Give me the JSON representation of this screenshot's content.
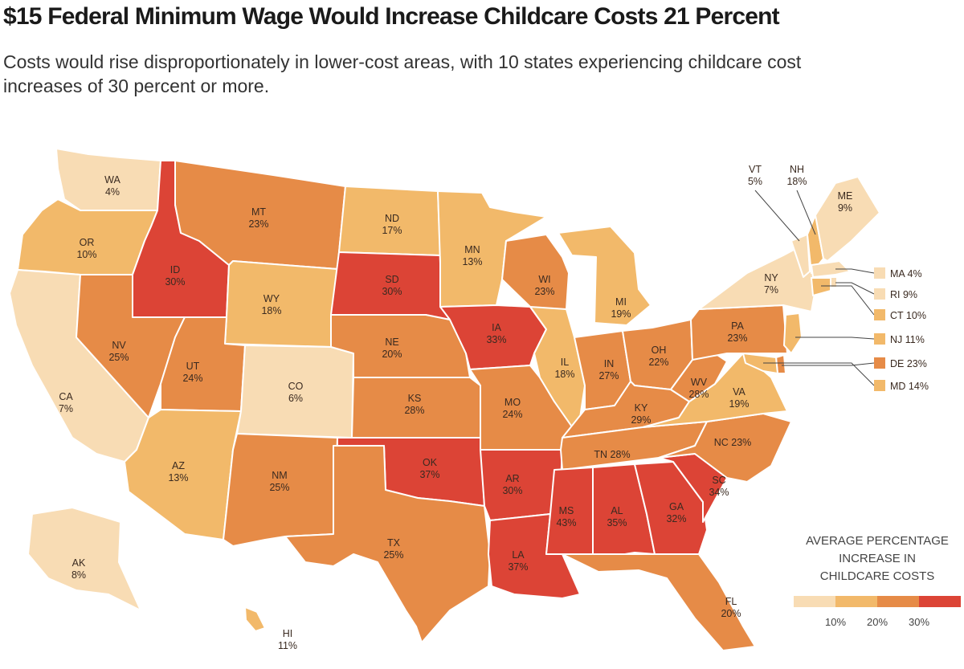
{
  "title": "$15 Federal Minimum Wage Would Increase Childcare Costs 21 Percent",
  "subtitle": "Costs would rise disproportionately in lower-cost areas, with 10 states experiencing childcare cost increases of 30 percent or more.",
  "colors": {
    "bin_lt10": "#f8dcb4",
    "bin_10_20": "#f2b96a",
    "bin_20_30": "#e68b47",
    "bin_30plus": "#dc4436"
  },
  "states": [
    {
      "abbr": "WA",
      "pct": "4%",
      "value": 4
    },
    {
      "abbr": "OR",
      "pct": "10%",
      "value": 10
    },
    {
      "abbr": "CA",
      "pct": "7%",
      "value": 7
    },
    {
      "abbr": "ID",
      "pct": "30%",
      "value": 30
    },
    {
      "abbr": "NV",
      "pct": "25%",
      "value": 25
    },
    {
      "abbr": "MT",
      "pct": "23%",
      "value": 23
    },
    {
      "abbr": "WY",
      "pct": "18%",
      "value": 18
    },
    {
      "abbr": "UT",
      "pct": "24%",
      "value": 24
    },
    {
      "abbr": "AZ",
      "pct": "13%",
      "value": 13
    },
    {
      "abbr": "CO",
      "pct": "6%",
      "value": 6
    },
    {
      "abbr": "NM",
      "pct": "25%",
      "value": 25
    },
    {
      "abbr": "ND",
      "pct": "17%",
      "value": 17
    },
    {
      "abbr": "SD",
      "pct": "30%",
      "value": 30
    },
    {
      "abbr": "NE",
      "pct": "20%",
      "value": 20
    },
    {
      "abbr": "KS",
      "pct": "28%",
      "value": 28
    },
    {
      "abbr": "OK",
      "pct": "37%",
      "value": 37
    },
    {
      "abbr": "TX",
      "pct": "25%",
      "value": 25
    },
    {
      "abbr": "MN",
      "pct": "13%",
      "value": 13
    },
    {
      "abbr": "IA",
      "pct": "33%",
      "value": 33
    },
    {
      "abbr": "MO",
      "pct": "24%",
      "value": 24
    },
    {
      "abbr": "AR",
      "pct": "30%",
      "value": 30
    },
    {
      "abbr": "LA",
      "pct": "37%",
      "value": 37
    },
    {
      "abbr": "WI",
      "pct": "23%",
      "value": 23
    },
    {
      "abbr": "IL",
      "pct": "18%",
      "value": 18
    },
    {
      "abbr": "MI",
      "pct": "19%",
      "value": 19
    },
    {
      "abbr": "IN",
      "pct": "27%",
      "value": 27
    },
    {
      "abbr": "OH",
      "pct": "22%",
      "value": 22
    },
    {
      "abbr": "KY",
      "pct": "29%",
      "value": 29
    },
    {
      "abbr": "TN",
      "pct": "28%",
      "value": 28
    },
    {
      "abbr": "MS",
      "pct": "43%",
      "value": 43
    },
    {
      "abbr": "AL",
      "pct": "35%",
      "value": 35
    },
    {
      "abbr": "GA",
      "pct": "32%",
      "value": 32
    },
    {
      "abbr": "FL",
      "pct": "20%",
      "value": 20
    },
    {
      "abbr": "SC",
      "pct": "34%",
      "value": 34
    },
    {
      "abbr": "NC",
      "pct": "23%",
      "value": 23
    },
    {
      "abbr": "VA",
      "pct": "19%",
      "value": 19
    },
    {
      "abbr": "WV",
      "pct": "28%",
      "value": 28
    },
    {
      "abbr": "PA",
      "pct": "23%",
      "value": 23
    },
    {
      "abbr": "NY",
      "pct": "7%",
      "value": 7
    },
    {
      "abbr": "VT",
      "pct": "5%",
      "value": 5
    },
    {
      "abbr": "NH",
      "pct": "18%",
      "value": 18
    },
    {
      "abbr": "ME",
      "pct": "9%",
      "value": 9
    },
    {
      "abbr": "AK",
      "pct": "8%",
      "value": 8
    },
    {
      "abbr": "HI",
      "pct": "11%",
      "value": 11
    }
  ],
  "northeast_callouts": [
    {
      "abbr": "MA",
      "pct": "4%",
      "value": 4,
      "text": "MA 4%"
    },
    {
      "abbr": "RI",
      "pct": "9%",
      "value": 9,
      "text": "RI 9%"
    },
    {
      "abbr": "CT",
      "pct": "10%",
      "value": 10,
      "text": "CT 10%"
    },
    {
      "abbr": "NJ",
      "pct": "11%",
      "value": 11,
      "text": "NJ 11%"
    },
    {
      "abbr": "DE",
      "pct": "23%",
      "value": 23,
      "text": "DE 23%"
    },
    {
      "abbr": "MD",
      "pct": "14%",
      "value": 14,
      "text": "MD 14%"
    }
  ],
  "inline_labels": {
    "TN": "TN 28%",
    "NC": "NC 23%"
  },
  "legend": {
    "title_lines": [
      "AVERAGE PERCENTAGE",
      "INCREASE IN",
      "CHILDCARE COSTS"
    ],
    "ticks": [
      "10%",
      "20%",
      "30%"
    ]
  }
}
